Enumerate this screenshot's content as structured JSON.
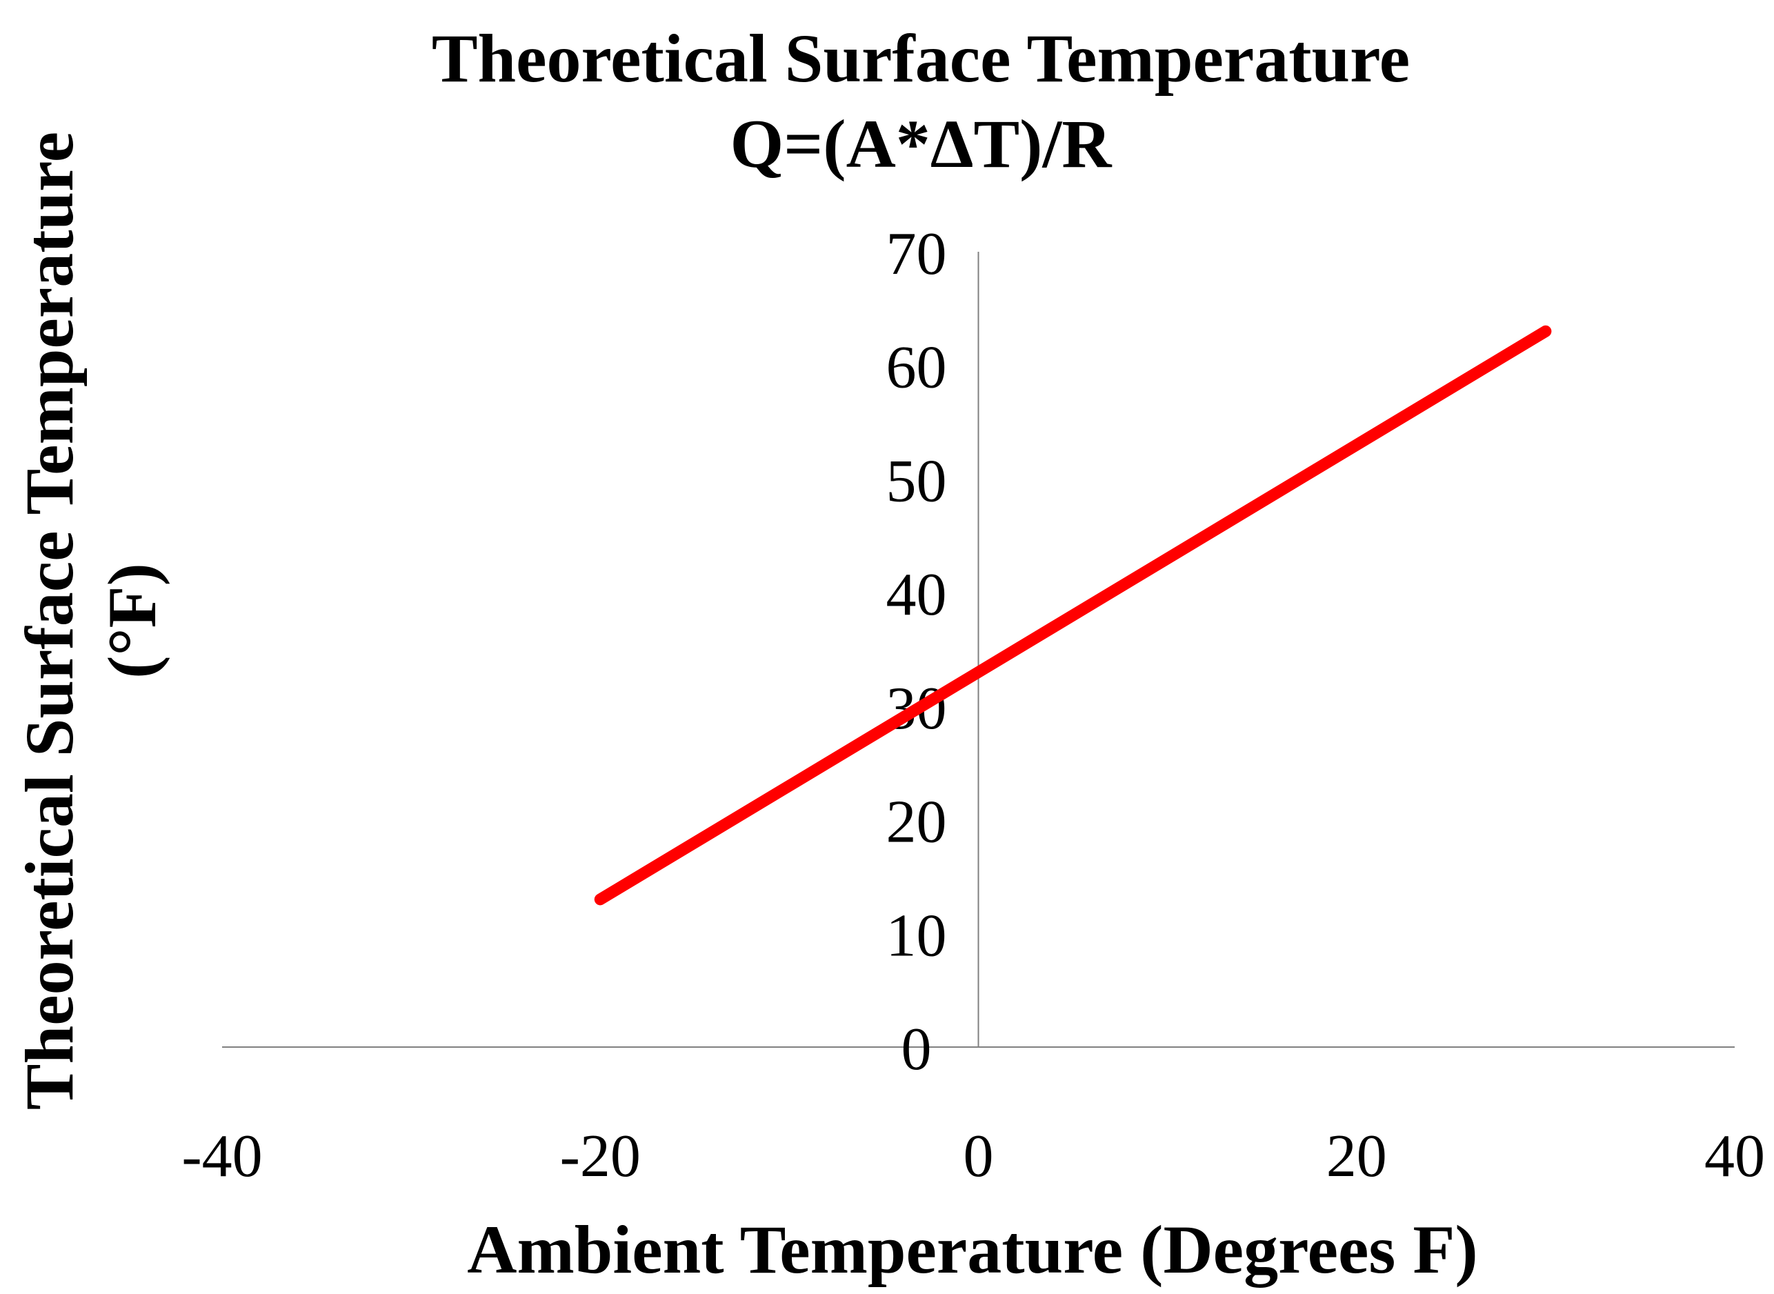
{
  "chart_data": {
    "type": "line",
    "title_lines": [
      "Theoretical  Surface Temperature",
      "Q=(A*ΔT)/R"
    ],
    "xlabel": "Ambient Temperature (Degrees F)",
    "ylabel_lines": [
      "Theoretical Surface Temperature",
      "(°F)"
    ],
    "xlim": [
      -40,
      40
    ],
    "ylim": [
      0,
      70
    ],
    "x_ticks": [
      -40,
      -20,
      0,
      20,
      40
    ],
    "y_ticks": [
      0,
      10,
      20,
      30,
      40,
      50,
      60,
      70
    ],
    "grid": false,
    "legend": "none",
    "series": [
      {
        "color": "#ff0000",
        "x": [
          -20,
          30
        ],
        "y": [
          13,
          63
        ]
      }
    ]
  }
}
